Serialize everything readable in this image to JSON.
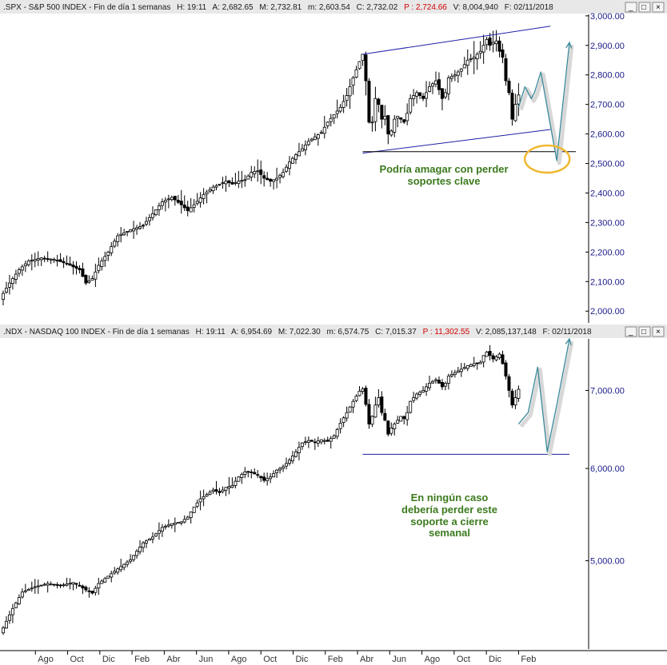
{
  "colors": {
    "background": "#ffffff",
    "header_bg": "#e8e8e8",
    "axis_text": "#1a1a8c",
    "candle": "#000000",
    "channel_line": "#1f1fa8",
    "support_line": "#000000",
    "projection": "#3a8a9a",
    "circle": "#f0b830",
    "annotation": "#3c7a1e",
    "header_red": "#d00000"
  },
  "window_buttons": {
    "minimize": "_",
    "maximize": "□",
    "close": "×"
  },
  "chart_data": [
    {
      "type": "candlestick",
      "header": {
        "symbol": ".SPX - S&P 500 INDEX - Fin de día 1 semanas",
        "items": [
          "H: 19:11",
          "A: 2,682.65",
          "M: 2,732.81",
          "m: 2,603.54",
          "C: 2,732.02"
        ],
        "red_item": "P : 2,724.66",
        "tail_items": [
          "V: 8,004,940",
          "F: 02/11/2018"
        ]
      },
      "y_ticks": [
        "3,000.00",
        "2,900.00",
        "2,800.00",
        "2,700.00",
        "2,600.00",
        "2,500.00",
        "2,400.00",
        "2,300.00",
        "2,200.00",
        "2,100.00",
        "2,000.00"
      ],
      "y_tick_values": [
        3000,
        2900,
        2800,
        2700,
        2600,
        2500,
        2400,
        2300,
        2200,
        2100,
        2000
      ],
      "ylim": [
        1960,
        3005
      ],
      "log_scale": false,
      "price_path": [
        [
          0,
          2060
        ],
        [
          2,
          2095
        ],
        [
          5,
          2140
        ],
        [
          8,
          2170
        ],
        [
          12,
          2180
        ],
        [
          16,
          2175
        ],
        [
          20,
          2160
        ],
        [
          24,
          2140
        ],
        [
          26,
          2095
        ],
        [
          28,
          2110
        ],
        [
          30,
          2155
        ],
        [
          33,
          2200
        ],
        [
          36,
          2255
        ],
        [
          40,
          2275
        ],
        [
          44,
          2290
        ],
        [
          47,
          2330
        ],
        [
          50,
          2370
        ],
        [
          53,
          2385
        ],
        [
          56,
          2360
        ],
        [
          58,
          2340
        ],
        [
          60,
          2360
        ],
        [
          63,
          2395
        ],
        [
          66,
          2420
        ],
        [
          68,
          2430
        ],
        [
          70,
          2440
        ],
        [
          72,
          2430
        ],
        [
          74,
          2440
        ],
        [
          76,
          2445
        ],
        [
          78,
          2470
        ],
        [
          80,
          2475
        ],
        [
          82,
          2450
        ],
        [
          84,
          2440
        ],
        [
          86,
          2450
        ],
        [
          88,
          2470
        ],
        [
          90,
          2505
        ],
        [
          92,
          2530
        ],
        [
          94,
          2550
        ],
        [
          96,
          2575
        ],
        [
          98,
          2590
        ],
        [
          100,
          2605
        ],
        [
          102,
          2640
        ],
        [
          104,
          2665
        ],
        [
          106,
          2690
        ],
        [
          108,
          2730
        ],
        [
          110,
          2790
        ],
        [
          112,
          2845
        ],
        [
          113,
          2870
        ],
        [
          114,
          2780
        ],
        [
          115,
          2640
        ],
        [
          116,
          2640
        ],
        [
          117,
          2720
        ],
        [
          118,
          2700
        ],
        [
          119,
          2650
        ],
        [
          120,
          2660
        ],
        [
          121,
          2600
        ],
        [
          122,
          2610
        ],
        [
          123,
          2650
        ],
        [
          124,
          2660
        ],
        [
          125,
          2650
        ],
        [
          126,
          2640
        ],
        [
          127,
          2670
        ],
        [
          128,
          2720
        ],
        [
          130,
          2740
        ],
        [
          132,
          2720
        ],
        [
          134,
          2760
        ],
        [
          136,
          2780
        ],
        [
          138,
          2720
        ],
        [
          139,
          2740
        ],
        [
          140,
          2790
        ],
        [
          142,
          2800
        ],
        [
          144,
          2820
        ],
        [
          146,
          2850
        ],
        [
          148,
          2860
        ],
        [
          150,
          2880
        ],
        [
          151,
          2900
        ],
        [
          152,
          2920
        ],
        [
          153,
          2900
        ],
        [
          154,
          2910
        ],
        [
          155,
          2915
        ],
        [
          156,
          2880
        ],
        [
          157,
          2860
        ],
        [
          158,
          2780
        ],
        [
          159,
          2740
        ],
        [
          160,
          2650
        ],
        [
          161,
          2700
        ],
        [
          162,
          2732
        ]
      ],
      "overlays": {
        "channel_upper": {
          "x": [
            113,
            172
          ],
          "y": [
            2870,
            2965
          ]
        },
        "channel_lower": {
          "x": [
            113,
            172
          ],
          "y": [
            2535,
            2615
          ]
        },
        "support": {
          "x": [
            113,
            180
          ],
          "y": [
            2540,
            2540
          ]
        },
        "projection_path": {
          "x": [
            162,
            164,
            166,
            167,
            169,
            171,
            174,
            178
          ],
          "y": [
            2690,
            2760,
            2720,
            2740,
            2810,
            2690,
            2510,
            2910
          ]
        },
        "circle": {
          "x": 171,
          "y": 2515
        }
      },
      "annotation": [
        "Podría amagar con perder",
        "soportes clave"
      ]
    },
    {
      "type": "candlestick",
      "header": {
        "symbol": ".NDX - NASDAQ 100 INDEX - Fin de día 1 semanas",
        "items": [
          "H: 19:11",
          "A: 6,954.69",
          "M: 7,022.30",
          "m: 6,574.75",
          "C: 7,015.37"
        ],
        "red_item": "P : 11,302.55",
        "tail_items": [
          "V: 2,085,137,148",
          "F: 02/11/2018"
        ]
      },
      "y_ticks": [
        "7,000.00",
        "6,000.00",
        "5,000.00"
      ],
      "y_tick_values": [
        7000,
        6000,
        5000
      ],
      "ylim": [
        4200,
        7750
      ],
      "log_scale": true,
      "price_path": [
        [
          0,
          4380
        ],
        [
          3,
          4550
        ],
        [
          6,
          4700
        ],
        [
          10,
          4750
        ],
        [
          14,
          4780
        ],
        [
          18,
          4760
        ],
        [
          22,
          4790
        ],
        [
          26,
          4720
        ],
        [
          28,
          4690
        ],
        [
          30,
          4780
        ],
        [
          33,
          4850
        ],
        [
          36,
          4920
        ],
        [
          40,
          5010
        ],
        [
          44,
          5180
        ],
        [
          47,
          5240
        ],
        [
          50,
          5340
        ],
        [
          53,
          5380
        ],
        [
          56,
          5400
        ],
        [
          58,
          5450
        ],
        [
          60,
          5560
        ],
        [
          62,
          5650
        ],
        [
          64,
          5700
        ],
        [
          66,
          5750
        ],
        [
          68,
          5720
        ],
        [
          70,
          5780
        ],
        [
          72,
          5800
        ],
        [
          74,
          5900
        ],
        [
          76,
          5960
        ],
        [
          78,
          5950
        ],
        [
          80,
          5920
        ],
        [
          82,
          5860
        ],
        [
          84,
          5900
        ],
        [
          86,
          5980
        ],
        [
          88,
          6020
        ],
        [
          90,
          6100
        ],
        [
          92,
          6200
        ],
        [
          94,
          6310
        ],
        [
          96,
          6340
        ],
        [
          98,
          6320
        ],
        [
          100,
          6350
        ],
        [
          102,
          6330
        ],
        [
          104,
          6400
        ],
        [
          106,
          6560
        ],
        [
          108,
          6700
        ],
        [
          110,
          6850
        ],
        [
          112,
          6990
        ],
        [
          113,
          7020
        ],
        [
          114,
          6810
        ],
        [
          115,
          6550
        ],
        [
          116,
          6650
        ],
        [
          117,
          6800
        ],
        [
          118,
          6900
        ],
        [
          119,
          6700
        ],
        [
          120,
          6600
        ],
        [
          121,
          6420
        ],
        [
          122,
          6500
        ],
        [
          123,
          6550
        ],
        [
          124,
          6600
        ],
        [
          125,
          6650
        ],
        [
          126,
          6620
        ],
        [
          127,
          6700
        ],
        [
          128,
          6850
        ],
        [
          130,
          6950
        ],
        [
          132,
          7000
        ],
        [
          134,
          7100
        ],
        [
          136,
          7150
        ],
        [
          138,
          7050
        ],
        [
          139,
          7100
        ],
        [
          140,
          7200
        ],
        [
          142,
          7250
        ],
        [
          144,
          7300
        ],
        [
          146,
          7350
        ],
        [
          148,
          7380
        ],
        [
          150,
          7400
        ],
        [
          151,
          7500
        ],
        [
          152,
          7550
        ],
        [
          153,
          7500
        ],
        [
          154,
          7450
        ],
        [
          155,
          7480
        ],
        [
          156,
          7520
        ],
        [
          157,
          7380
        ],
        [
          158,
          7200
        ],
        [
          159,
          7000
        ],
        [
          160,
          6800
        ],
        [
          161,
          6900
        ],
        [
          162,
          7015
        ]
      ],
      "overlays": {
        "support": {
          "x": [
            113,
            178
          ],
          "y": [
            6170,
            6170
          ]
        },
        "projection_path": {
          "x": [
            162,
            165,
            168,
            171,
            174,
            178
          ],
          "y": [
            6550,
            6700,
            7330,
            6200,
            6800,
            7750
          ]
        }
      },
      "annotation": [
        "En ningún caso",
        "debería perder este",
        "soporte a cierre",
        "semanal"
      ]
    }
  ],
  "x_axis": {
    "ticks": [
      {
        "label": "Ago",
        "x": 9
      },
      {
        "label": "Oct",
        "x": 18
      },
      {
        "label": "Dic",
        "x": 27
      },
      {
        "label": "Feb",
        "x": 36
      },
      {
        "label": "Abr",
        "x": 45
      },
      {
        "label": "Jun",
        "x": 54
      },
      {
        "label": "Ago",
        "x": 63
      },
      {
        "label": "Oct",
        "x": 72
      },
      {
        "label": "Dic",
        "x": 81
      },
      {
        "label": "Feb",
        "x": 90
      },
      {
        "label": "Abr",
        "x": 99
      },
      {
        "label": "Jun",
        "x": 108
      },
      {
        "label": "Ago",
        "x": 117
      },
      {
        "label": "Oct",
        "x": 126
      },
      {
        "label": "Dic",
        "x": 135
      },
      {
        "label": "Feb",
        "x": 144
      }
    ]
  }
}
